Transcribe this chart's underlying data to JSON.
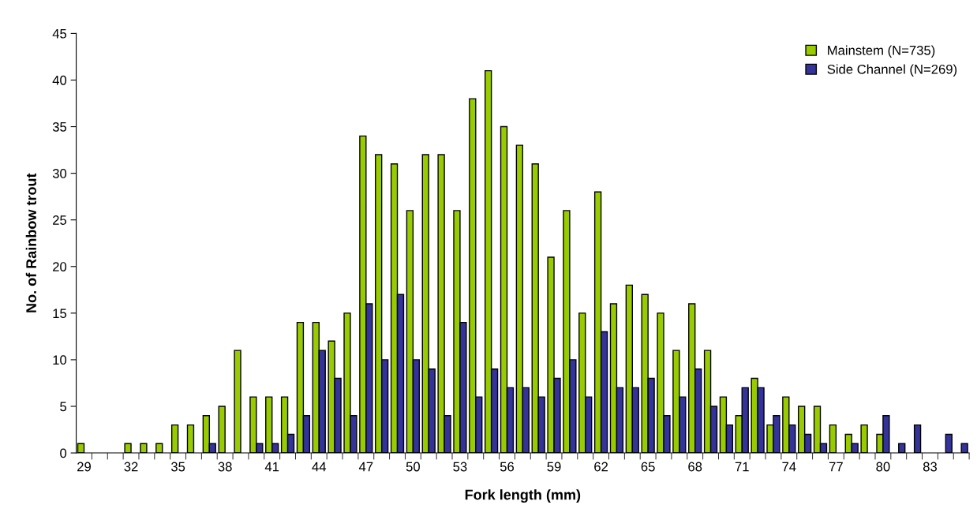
{
  "chart_data": {
    "type": "bar",
    "xlabel": "Fork length (mm)",
    "ylabel": "No. of Rainbow trout",
    "categories": [
      "29",
      null,
      null,
      "32",
      null,
      null,
      "35",
      null,
      null,
      "38",
      null,
      null,
      "41",
      null,
      null,
      "44",
      null,
      null,
      "47",
      null,
      null,
      "50",
      null,
      null,
      "53",
      null,
      null,
      "56",
      null,
      null,
      "59",
      null,
      null,
      "62",
      null,
      null,
      "65",
      null,
      null,
      "68",
      null,
      null,
      "71",
      null,
      null,
      "74",
      null,
      null,
      "77",
      null,
      null,
      "80",
      null,
      null,
      "83",
      null,
      null
    ],
    "series": [
      {
        "name": "Mainstem (N=735)",
        "color": "#99cc00",
        "values": [
          1,
          0,
          0,
          1,
          1,
          1,
          3,
          3,
          4,
          5,
          11,
          6,
          6,
          6,
          14,
          14,
          12,
          15,
          34,
          32,
          31,
          26,
          32,
          32,
          26,
          38,
          41,
          35,
          33,
          31,
          21,
          26,
          15,
          28,
          16,
          18,
          17,
          15,
          11,
          16,
          11,
          6,
          4,
          8,
          3,
          6,
          5,
          5,
          3,
          2,
          3,
          2,
          0,
          0,
          0,
          0,
          0
        ]
      },
      {
        "name": "Side Channel (N=269)",
        "color": "#333399",
        "values": [
          0,
          0,
          0,
          0,
          0,
          0,
          0,
          0,
          1,
          0,
          0,
          1,
          1,
          2,
          4,
          11,
          8,
          4,
          16,
          10,
          17,
          10,
          9,
          4,
          14,
          6,
          9,
          7,
          7,
          6,
          8,
          10,
          6,
          13,
          7,
          7,
          8,
          4,
          6,
          9,
          5,
          3,
          7,
          7,
          4,
          3,
          2,
          1,
          0,
          1,
          0,
          4,
          1,
          3,
          0,
          2,
          1
        ]
      }
    ],
    "ylim": [
      0,
      45
    ],
    "yticks": [
      0,
      5,
      10,
      15,
      20,
      25,
      30,
      35,
      40,
      45
    ],
    "grid": false,
    "legend": "top right"
  }
}
